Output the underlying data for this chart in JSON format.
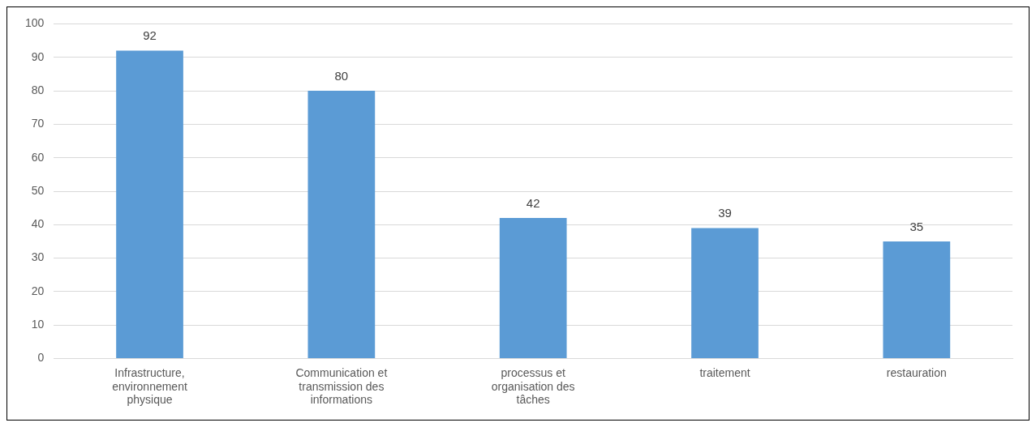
{
  "chart_data": {
    "type": "bar",
    "categories": [
      "Infrastructure, environnement physique",
      "Communication et transmission des informations",
      "processus et organisation des tâches",
      "traitement",
      "restauration"
    ],
    "values": [
      92,
      80,
      42,
      39,
      35
    ],
    "color": "#5b9bd5",
    "ylim": [
      0,
      100
    ],
    "yticks": [
      0,
      10,
      20,
      30,
      40,
      50,
      60,
      70,
      80,
      90,
      100
    ],
    "grid": "y",
    "data_labels": true,
    "legend": false
  }
}
